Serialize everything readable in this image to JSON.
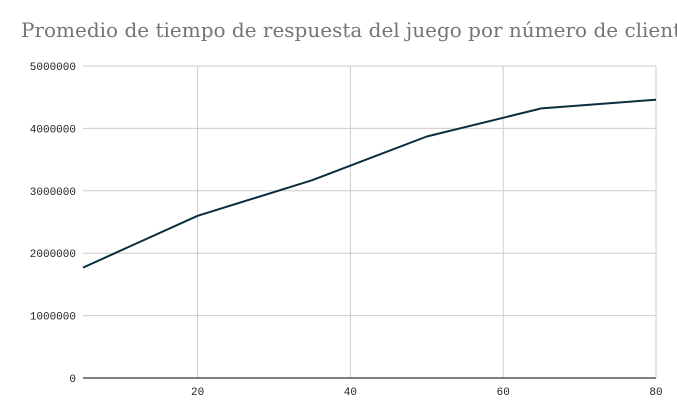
{
  "chart_data": {
    "type": "line",
    "title": "Promedio de tiempo de respuesta del juego por número de clientes",
    "xlabel": "",
    "ylabel": "",
    "x": [
      5,
      20,
      35,
      50,
      65,
      80
    ],
    "series": [
      {
        "values": [
          1770000,
          2600000,
          3170000,
          3870000,
          4320000,
          4460000
        ]
      }
    ],
    "xlim": [
      5,
      80
    ],
    "ylim": [
      0,
      5000000
    ],
    "xticks": [
      20,
      40,
      60,
      80
    ],
    "yticks": [
      0,
      1000000,
      2000000,
      3000000,
      4000000,
      5000000
    ],
    "grid": true,
    "legend": "none",
    "colors": {
      "line": "#0b2e3f",
      "grid": "#cccccc",
      "axis": "#333333",
      "title": "#757575"
    }
  }
}
